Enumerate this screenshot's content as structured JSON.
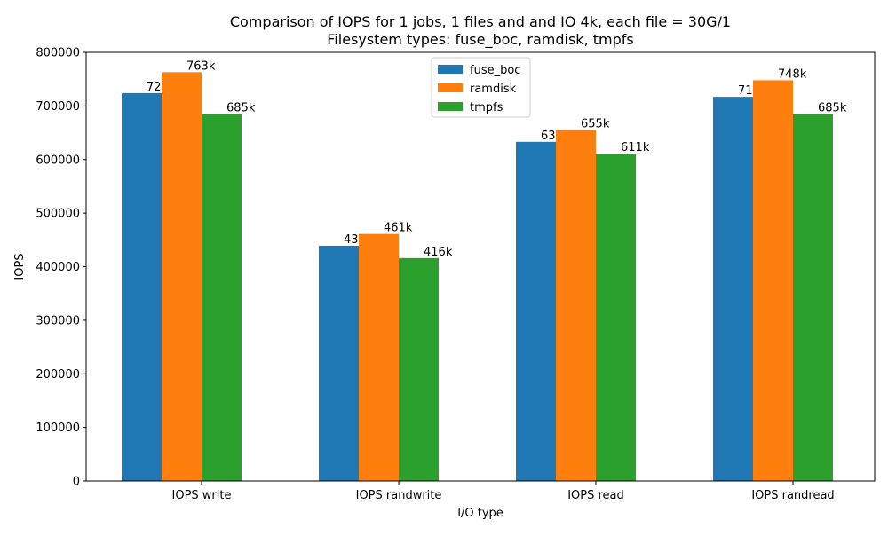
{
  "chart_data": {
    "type": "bar",
    "title_line1": "Comparison of IOPS for 1 jobs, 1 files and  and IO 4k, each file = 30G/1",
    "title_line2": "Filesystem types: fuse_boc, ramdisk, tmpfs",
    "xlabel": "I/O type",
    "ylabel": "IOPS",
    "categories": [
      "IOPS write",
      "IOPS randwrite",
      "IOPS read",
      "IOPS randread"
    ],
    "ylim": [
      0,
      800000
    ],
    "yticks": [
      0,
      100000,
      200000,
      300000,
      400000,
      500000,
      600000,
      700000,
      800000
    ],
    "ytick_labels": [
      "0",
      "100000",
      "200000",
      "300000",
      "400000",
      "500000",
      "600000",
      "700000",
      "800000"
    ],
    "grid": false,
    "legend_position": "top-center",
    "series": [
      {
        "name": "fuse_boc",
        "color": "#1f77b4",
        "values": [
          724000,
          439000,
          633000,
          717000
        ],
        "labels": [
          "724k",
          "439k",
          "633k",
          "717k"
        ]
      },
      {
        "name": "ramdisk",
        "color": "#ff7f0e",
        "values": [
          763000,
          461000,
          655000,
          748000
        ],
        "labels": [
          "763k",
          "461k",
          "655k",
          "748k"
        ]
      },
      {
        "name": "tmpfs",
        "color": "#2ca02c",
        "values": [
          685000,
          416000,
          611000,
          685000
        ],
        "labels": [
          "685k",
          "416k",
          "611k",
          "685k"
        ]
      }
    ]
  }
}
